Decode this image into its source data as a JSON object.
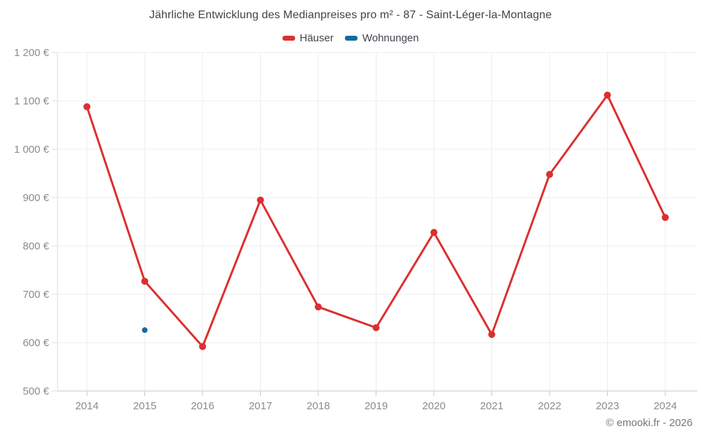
{
  "chart_data": {
    "type": "line",
    "title": "Jährliche Entwicklung des Medianpreises pro m² - 87 - Saint-Léger-la-Montagne",
    "footer": "© emooki.fr - 2026",
    "categories": [
      2014,
      2015,
      2016,
      2017,
      2018,
      2019,
      2020,
      2021,
      2022,
      2023,
      2024
    ],
    "series": [
      {
        "name": "Häuser",
        "color": "#dc2f2f",
        "marker_radius": 5,
        "line_width": 3,
        "values": [
          1088,
          727,
          592,
          895,
          674,
          631,
          828,
          617,
          948,
          1112,
          859
        ]
      },
      {
        "name": "Wohnungen",
        "color": "#17699e",
        "marker_radius": 4,
        "line_width": 3,
        "values": [
          null,
          626,
          null,
          null,
          null,
          null,
          null,
          null,
          null,
          null,
          null
        ]
      }
    ],
    "ylim": [
      500,
      1200
    ],
    "ytick_step": 100,
    "ytick_labels": [
      "500 €",
      "600 €",
      "700 €",
      "800 €",
      "900 €",
      "1 000 €",
      "1 100 €",
      "1 200 €"
    ],
    "xtick_labels": [
      "2014",
      "2015",
      "2016",
      "2017",
      "2018",
      "2019",
      "2020",
      "2021",
      "2022",
      "2023",
      "2024"
    ],
    "grid": true,
    "legend_position": "top",
    "ylabel": "",
    "xlabel": ""
  },
  "colors": {
    "grid": "#ededed",
    "axis": "#c9c9c9",
    "left_axis": "#dcdcdc",
    "tick_label": "#8b8b8b",
    "title_text": "#3f434a",
    "footer_text": "#757575",
    "background": "#ffffff"
  }
}
